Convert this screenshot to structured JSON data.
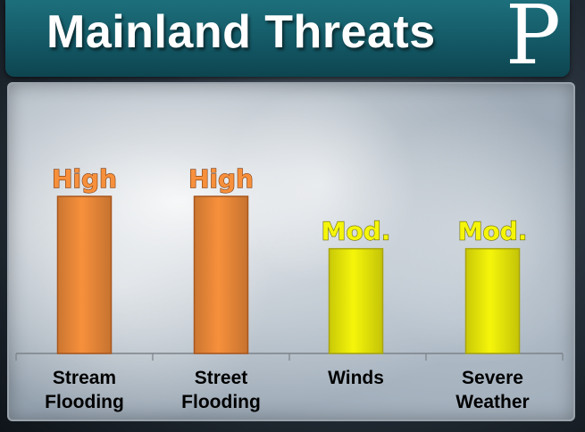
{
  "header": {
    "title": "Mainland Threats",
    "logo_letter": "P"
  },
  "chart_data": {
    "type": "bar",
    "categories": [
      [
        "Stream",
        "Flooding"
      ],
      [
        "Street",
        "Flooding"
      ],
      [
        "Winds"
      ],
      [
        "Severe",
        "Weather"
      ]
    ],
    "levels": [
      "High",
      "High",
      "Mod.",
      "Mod."
    ],
    "values": [
      3,
      3,
      2,
      2
    ],
    "ylim": [
      0,
      3
    ],
    "grid": false,
    "colors": {
      "High": "#f7903c",
      "Mod.": "#f5f50a"
    }
  }
}
